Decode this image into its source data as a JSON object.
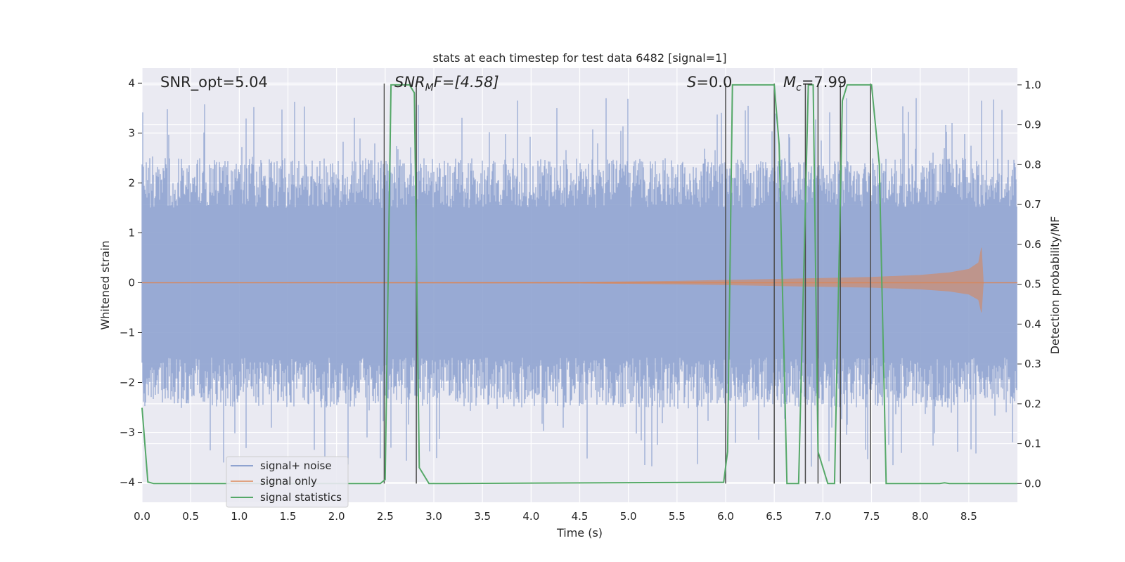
{
  "chart_data": {
    "type": "line",
    "title": "stats at each timestep for test data 6482 [signal=1]",
    "xlabel": "Time (s)",
    "ylabel_left": "Whitened strain",
    "ylabel_right": "Detection probability/MF",
    "xlim": [
      0.0,
      9.0
    ],
    "ylim_left": [
      -4.4,
      4.3
    ],
    "ylim_right": [
      -0.047,
      1.042
    ],
    "x_ticks": [
      "0.0",
      "0.5",
      "1.0",
      "1.5",
      "2.0",
      "2.5",
      "3.0",
      "3.5",
      "4.0",
      "4.5",
      "5.0",
      "5.5",
      "6.0",
      "6.5",
      "7.0",
      "7.5",
      "8.0",
      "8.5"
    ],
    "y_left_ticks": [
      "4",
      "3",
      "2",
      "1",
      "0",
      "−1",
      "−2",
      "−3",
      "−4"
    ],
    "y_right_ticks": [
      "1.0",
      "0.9",
      "0.8",
      "0.7",
      "0.6",
      "0.5",
      "0.4",
      "0.3",
      "0.2",
      "0.1",
      "0.0"
    ],
    "grid": true,
    "legend_position": "lower-left",
    "annotations": {
      "snr_opt": "SNR_opt=5.04",
      "snr_mf_base": "SNR",
      "snr_mf_sub": "M",
      "snr_mf_rest": "F=[4.58]",
      "s_var": "S",
      "s_rest": "=0.0",
      "mc_base": "M",
      "mc_sub": "c",
      "mc_rest": "=7.99"
    },
    "series": [
      {
        "name": "signal+ noise",
        "color": "#8fa3d0",
        "description": "whitened strain noise, amplitude roughly within -3.5..3.5 with many spikes",
        "envelope_typical": 2.0,
        "envelope_max": 3.7
      },
      {
        "name": "signal only",
        "color": "#dd8452",
        "description": "chirp signal growing in amplitude, peaks near t=8.63",
        "x": [
          0.0,
          4.5,
          5.5,
          6.0,
          6.5,
          7.0,
          7.5,
          8.0,
          8.3,
          8.5,
          8.6,
          8.63,
          8.65,
          9.0
        ],
        "amplitude": [
          0.0,
          0.01,
          0.03,
          0.05,
          0.07,
          0.09,
          0.11,
          0.15,
          0.2,
          0.27,
          0.4,
          0.7,
          0.0,
          0.0
        ]
      },
      {
        "name": "signal statistics",
        "color": "#55a868",
        "x": [
          0.0,
          0.06,
          0.12,
          2.45,
          2.5,
          2.56,
          2.75,
          2.8,
          2.85,
          2.95,
          5.98,
          6.02,
          6.07,
          6.5,
          6.55,
          6.63,
          6.75,
          6.85,
          6.9,
          6.95,
          7.05,
          7.12,
          7.2,
          7.25,
          7.32,
          7.5,
          7.58,
          7.65,
          8.2,
          8.25,
          8.3,
          9.0
        ],
        "values": [
          0.19,
          0.004,
          0.0,
          0.0,
          0.01,
          1.0,
          1.0,
          0.98,
          0.04,
          0.0,
          0.003,
          0.08,
          1.0,
          1.0,
          0.85,
          0.0,
          0.0,
          1.0,
          1.0,
          0.08,
          0.0,
          0.0,
          0.96,
          1.0,
          1.0,
          1.0,
          0.8,
          0.0,
          0.0,
          0.002,
          0.0,
          0.0
        ]
      }
    ],
    "event_markers": [
      2.49,
      2.82,
      6.0,
      6.5,
      6.82,
      6.95,
      7.18,
      7.49
    ],
    "marker_color": "#4c4c4c"
  }
}
